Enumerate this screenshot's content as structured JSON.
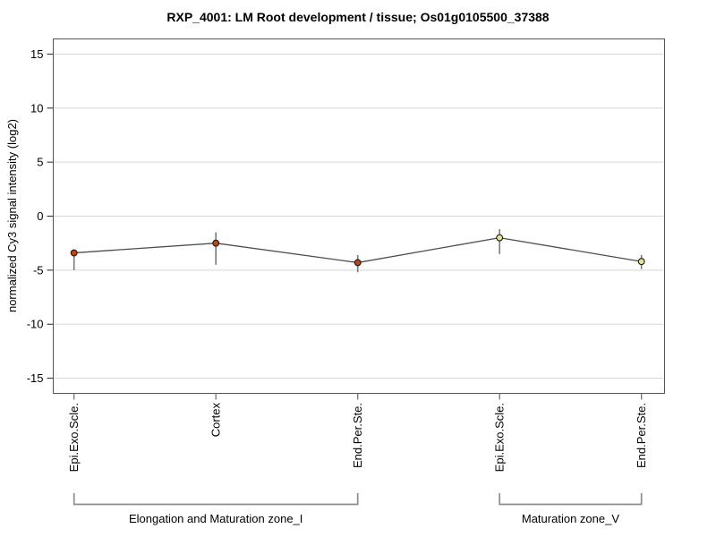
{
  "chart_data": {
    "type": "line",
    "title": "RXP_4001: LM Root development / tissue; Os01g0105500_37388",
    "ylabel": "normalized Cy3 signal intensity (log2)",
    "xlabel": "",
    "ylim": [
      -16.4,
      16.4
    ],
    "yticks": [
      -15,
      -10,
      -5,
      0,
      5,
      10,
      15
    ],
    "grid": "horizontal-light-gray",
    "legend": "none",
    "categories": [
      "Epi.Exo.Scle.",
      "Cortex",
      "End.Per.Ste.",
      "Epi.Exo.Scle.",
      "End.Per.Ste."
    ],
    "points": [
      {
        "tissue": "Epi.Exo.Scle.",
        "value": -3.4,
        "error_low": -5.0,
        "error_high": -3.4,
        "marker_color": "#c8400a"
      },
      {
        "tissue": "Cortex",
        "value": -2.5,
        "error_low": -4.5,
        "error_high": -1.5,
        "marker_color": "#c8400a"
      },
      {
        "tissue": "End.Per.Ste.",
        "value": -4.3,
        "error_low": -5.2,
        "error_high": -3.6,
        "marker_color": "#c8400a"
      },
      {
        "tissue": "Epi.Exo.Scle.",
        "value": -2.0,
        "error_low": -3.5,
        "error_high": -1.2,
        "marker_color": "#e4e493"
      },
      {
        "tissue": "End.Per.Ste.",
        "value": -4.2,
        "error_low": -4.9,
        "error_high": -3.6,
        "marker_color": "#e4e493"
      }
    ],
    "groups": [
      {
        "label": "Elongation and Maturation zone_I",
        "start_index": 0,
        "end_index": 2
      },
      {
        "label": "Maturation zone_V",
        "start_index": 3,
        "end_index": 4
      }
    ],
    "colors": {
      "gridline": "#d6d6d6",
      "frame": "#545454",
      "series_line": "#4d4d4d",
      "whisker": "#7a7a7a",
      "marker_stroke": "#1a1a1a",
      "bracket": "#8c8c8c",
      "y_tick": "#262626",
      "x_tick": "#737373"
    }
  }
}
